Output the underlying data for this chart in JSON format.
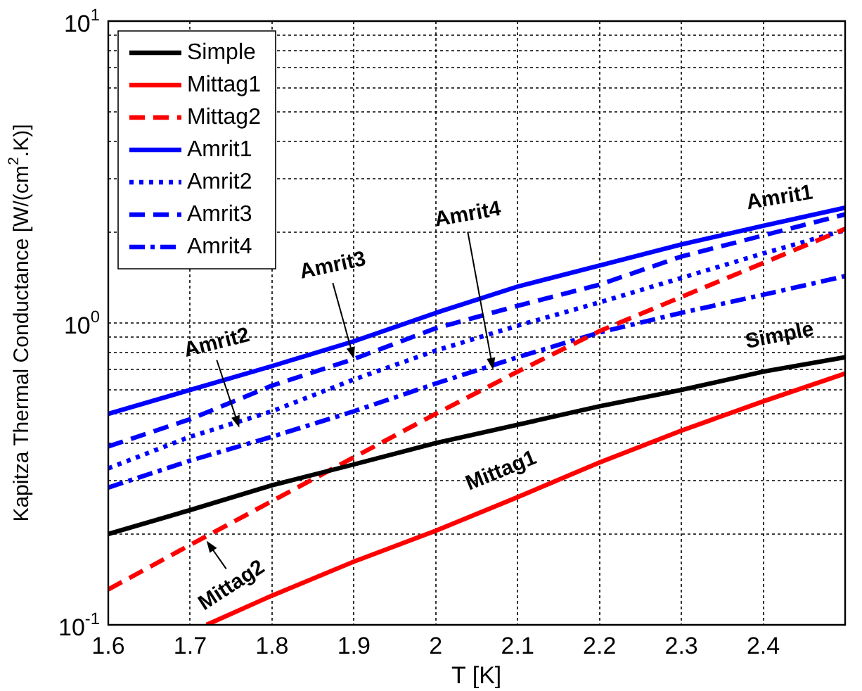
{
  "chart_data": {
    "type": "line",
    "xlabel": "T [K]",
    "ylabel": "Kapitza Thermal Conductance [W/(cm$^{2}$.K)]",
    "x": [
      1.6,
      1.7,
      1.8,
      1.9,
      2.0,
      2.1,
      2.2,
      2.3,
      2.4,
      2.5
    ],
    "series": [
      {
        "name": "Simple",
        "color": "#000000",
        "line_style": "solid",
        "values": [
          0.2,
          0.24,
          0.29,
          0.34,
          0.4,
          0.46,
          0.53,
          0.6,
          0.69,
          0.77
        ]
      },
      {
        "name": "Mittag1",
        "color": "#ff0000",
        "line_style": "solid",
        "x": [
          1.72,
          1.8,
          1.9,
          2.0,
          2.1,
          2.2,
          2.3,
          2.4,
          2.5
        ],
        "values": [
          0.1,
          0.125,
          0.162,
          0.205,
          0.265,
          0.345,
          0.44,
          0.55,
          0.68
        ]
      },
      {
        "name": "Mittag2",
        "color": "#ff0000",
        "line_style": "dashed",
        "values": [
          0.131,
          0.184,
          0.257,
          0.359,
          0.5,
          0.69,
          0.94,
          1.22,
          1.58,
          2.05
        ]
      },
      {
        "name": "Amrit1",
        "color": "#0000ff",
        "line_style": "solid",
        "values": [
          0.5,
          0.6,
          0.72,
          0.87,
          1.08,
          1.32,
          1.55,
          1.82,
          2.1,
          2.41
        ]
      },
      {
        "name": "Amrit2",
        "color": "#0000ff",
        "line_style": "dotted",
        "values": [
          0.33,
          0.42,
          0.51,
          0.65,
          0.81,
          0.98,
          1.17,
          1.41,
          1.7,
          2.03
        ]
      },
      {
        "name": "Amrit3",
        "color": "#0000ff",
        "line_style": "dashed",
        "values": [
          0.39,
          0.48,
          0.62,
          0.76,
          0.96,
          1.14,
          1.34,
          1.66,
          1.95,
          2.29
        ]
      },
      {
        "name": "Amrit4",
        "color": "#0000ff",
        "line_style": "dashdot",
        "values": [
          0.285,
          0.35,
          0.42,
          0.51,
          0.63,
          0.77,
          0.93,
          1.08,
          1.24,
          1.43
        ]
      }
    ],
    "xlim": [
      1.6,
      2.5
    ],
    "xticks": [
      1.6,
      1.7,
      1.8,
      1.9,
      2,
      2.1,
      2.2,
      2.3,
      2.4
    ],
    "ylim": [
      0.1,
      10
    ],
    "yticks": [
      {
        "value": 0.1,
        "label": "10$^{-1}$"
      },
      {
        "value": 0.2,
        "label": null
      },
      {
        "value": 0.3,
        "label": null
      },
      {
        "value": 0.4,
        "label": null
      },
      {
        "value": 0.5,
        "label": null
      },
      {
        "value": 0.6,
        "label": null
      },
      {
        "value": 0.7,
        "label": null
      },
      {
        "value": 0.8,
        "label": null
      },
      {
        "value": 0.9,
        "label": null
      },
      {
        "value": 1,
        "label": "10$^{0}$"
      },
      {
        "value": 2,
        "label": null
      },
      {
        "value": 3,
        "label": null
      },
      {
        "value": 4,
        "label": null
      },
      {
        "value": 5,
        "label": null
      },
      {
        "value": 6,
        "label": null
      },
      {
        "value": 7,
        "label": null
      },
      {
        "value": 8,
        "label": null
      },
      {
        "value": 9,
        "label": null
      },
      {
        "value": 10,
        "label": "10$^{1}$"
      }
    ],
    "log": "y",
    "grid": true,
    "legend": "top left",
    "annotations": [
      {
        "text": "Amrit1",
        "x": 2.42,
        "y": 2.16
      },
      {
        "text": "Simple",
        "x": 2.42,
        "y": 0.7
      },
      {
        "text": "Mittag1",
        "x": 2.08,
        "y": 0.255
      },
      {
        "text": "Amrit2",
        "x": 1.76,
        "y": 0.45
      },
      {
        "text": "Amrit3",
        "x": 1.9,
        "y": 0.76
      },
      {
        "text": "Amrit4",
        "x": 2.07,
        "y": 0.7
      },
      {
        "text": "Mittag2",
        "x": 1.72,
        "y": 0.19
      }
    ]
  }
}
